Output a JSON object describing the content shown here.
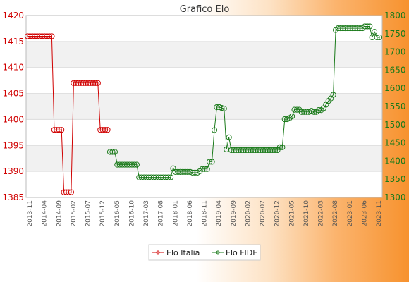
{
  "chart_data": {
    "type": "line",
    "title": "Grafico Elo",
    "xlabel": "",
    "ylabel": "",
    "grid": true,
    "legend_position": "bottom-center",
    "left_axis": {
      "ylim": [
        1385,
        1420
      ],
      "ticks": [
        "1385",
        "1390",
        "1395",
        "1400",
        "1405",
        "1410",
        "1415",
        "1420"
      ],
      "color": "#d00000"
    },
    "right_axis": {
      "ylim": [
        1300,
        1800
      ],
      "ticks": [
        "1300",
        "1350",
        "1400",
        "1450",
        "1500",
        "1550",
        "1600",
        "1650",
        "1700",
        "1750",
        "1800"
      ],
      "color": "#1a7a1a"
    },
    "x_ticks": [
      "2013-11",
      "2014-04",
      "2014-09",
      "2015-02",
      "2015-07",
      "2015-12",
      "2016-05",
      "2016-10",
      "2017-03",
      "2017-08",
      "2018-01",
      "2018-06",
      "2018-11",
      "2019-04",
      "2019-09",
      "2020-02",
      "2020-07",
      "2020-12",
      "2021-05",
      "2021-10",
      "2022-03",
      "2022-08",
      "2023-01",
      "2023-06",
      "2023-11"
    ],
    "series": [
      {
        "name": "Elo Italia",
        "axis": "left",
        "color": "#d00000",
        "values": [
          1416,
          1416,
          1416,
          1416,
          1416,
          1416,
          1416,
          1416,
          1416,
          1416,
          1416,
          1398,
          1398,
          1398,
          1398,
          1386,
          1386,
          1386,
          1386,
          1407,
          1407,
          1407,
          1407,
          1407,
          1407,
          1407,
          1407,
          1407,
          1407,
          1407,
          1398,
          1398,
          1398,
          1398
        ]
      },
      {
        "name": "Elo FIDE",
        "axis": "right",
        "color": "#1a7a1a",
        "values": [
          null,
          null,
          null,
          null,
          null,
          null,
          null,
          null,
          null,
          null,
          null,
          null,
          null,
          null,
          null,
          null,
          null,
          null,
          null,
          null,
          null,
          null,
          null,
          null,
          null,
          null,
          null,
          null,
          null,
          null,
          null,
          null,
          null,
          null,
          1425,
          1425,
          1425,
          1390,
          1390,
          1390,
          1390,
          1390,
          1390,
          1390,
          1390,
          1390,
          1355,
          1355,
          1355,
          1355,
          1355,
          1355,
          1355,
          1355,
          1355,
          1355,
          1355,
          1355,
          1355,
          1355,
          1380,
          1370,
          1370,
          1370,
          1370,
          1370,
          1370,
          1370,
          1368,
          1368,
          1368,
          1372,
          1378,
          1378,
          1378,
          1398,
          1398,
          1485,
          1548,
          1548,
          1546,
          1544,
          1432,
          1465,
          1430,
          1430,
          1430,
          1430,
          1430,
          1430,
          1430,
          1430,
          1430,
          1430,
          1430,
          1430,
          1430,
          1430,
          1430,
          1430,
          1430,
          1430,
          1430,
          1430,
          1438,
          1438,
          1515,
          1515,
          1518,
          1523,
          1541,
          1541,
          1541,
          1535,
          1535,
          1535,
          1535,
          1538,
          1535,
          1535,
          1540,
          1540,
          1545,
          1555,
          1565,
          1572,
          1582,
          1760,
          1765,
          1765,
          1765,
          1765,
          1765,
          1765,
          1765,
          1765,
          1765,
          1765,
          1765,
          1770,
          1770,
          1770,
          1740,
          1755,
          1740,
          1740
        ]
      }
    ]
  }
}
